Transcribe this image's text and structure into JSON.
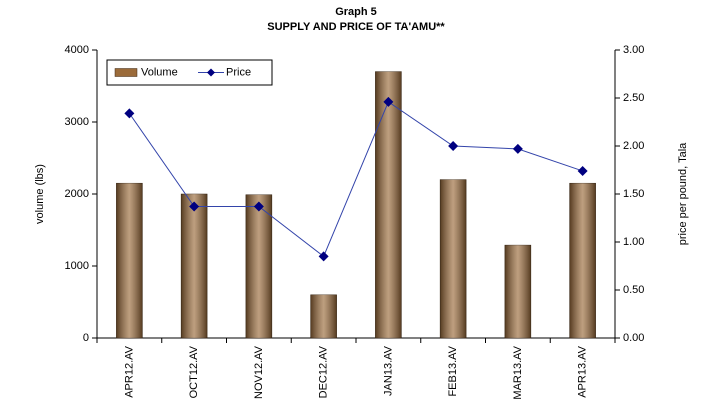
{
  "chart_data": {
    "type": "bar_line",
    "title": "Graph 5",
    "subtitle": "SUPPLY AND PRICE OF TA'AMU**",
    "y_label": "volume (lbs)",
    "y2_label": "price per pound, Tala",
    "categories": [
      "APR12.AV",
      "OCT12.AV",
      "NOV12.AV",
      "DEC12.AV",
      "JAN13.AV",
      "FEB13.AV",
      "MAR13.AV",
      "APR13.AV"
    ],
    "series": [
      {
        "name": "Volume",
        "type": "bar",
        "color": "#9b6b3a",
        "values": [
          2150,
          2000,
          1990,
          600,
          3700,
          2200,
          1290,
          2150
        ]
      },
      {
        "name": "Price",
        "type": "line",
        "axis": "y2",
        "color": "#000080",
        "values": [
          2.34,
          1.37,
          1.37,
          0.85,
          2.46,
          2.0,
          1.97,
          1.74
        ]
      }
    ],
    "ylim": [
      0,
      4000
    ],
    "yticks": [
      0,
      1000,
      2000,
      3000,
      4000
    ],
    "y2lim": [
      0,
      3
    ],
    "y2ticks": [
      {
        "value": 0,
        "label": "0.00"
      },
      {
        "value": 0.5,
        "label": "0.50"
      },
      {
        "value": 1,
        "label": "1.00"
      },
      {
        "value": 1.5,
        "label": "1.50"
      },
      {
        "value": 2,
        "label": "2.00"
      },
      {
        "value": 2.5,
        "label": "2.50"
      },
      {
        "value": 3,
        "label": "3.00"
      }
    ],
    "legend": "top-left"
  }
}
